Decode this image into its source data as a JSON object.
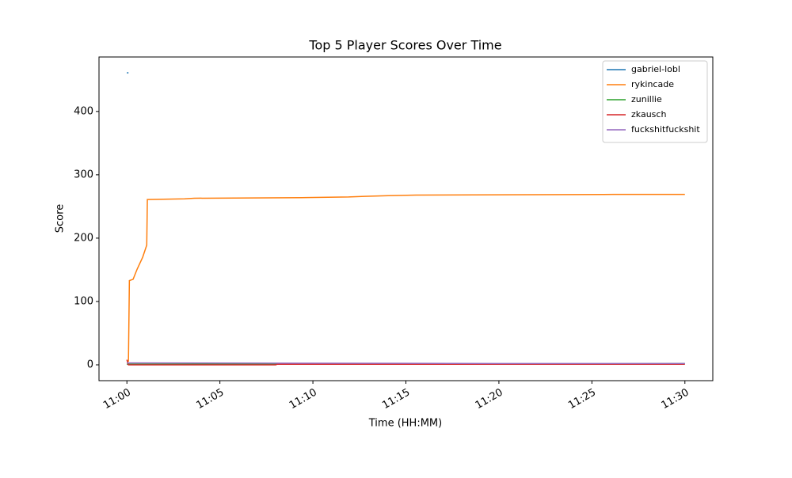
{
  "chart_data": {
    "type": "line",
    "title": "Top 5 Player Scores Over Time",
    "xlabel": "Time (HH:MM)",
    "ylabel": "Score",
    "xlim": [
      "10:58:30",
      "11:31:30"
    ],
    "xticks": [
      "11:00",
      "11:05",
      "11:10",
      "11:15",
      "11:20",
      "11:25",
      "11:30"
    ],
    "ylim": [
      -25,
      486
    ],
    "yticks": [
      0,
      100,
      200,
      300,
      400
    ],
    "legend": "upper right",
    "series": [
      {
        "name": "gabriel-lobl",
        "color": "#1f77b4",
        "x": [
          "11:00:00",
          "11:00:05"
        ],
        "values": [
          461,
          461
        ]
      },
      {
        "name": "rykincade",
        "color": "#ff7f0e",
        "x": [
          "11:00:05",
          "11:00:08",
          "11:00:20",
          "11:00:33",
          "11:00:51",
          "11:01:04",
          "11:01:06",
          "11:03:06",
          "11:03:37",
          "11:09:42",
          "11:11:55",
          "11:12:46",
          "11:14:03",
          "11:15:32",
          "11:26:10",
          "11:30:00"
        ],
        "values": [
          5,
          133,
          135,
          151,
          170,
          189,
          261,
          262,
          263,
          264,
          265,
          266,
          267,
          268,
          269,
          269
        ]
      },
      {
        "name": "zunillie",
        "color": "#2ca02c",
        "x": [
          "11:00:00",
          "11:10:00",
          "11:20:00",
          "11:30:00"
        ],
        "values": [
          1,
          1,
          1,
          2
        ]
      },
      {
        "name": "zkausch",
        "color": "#d62728",
        "x": [
          "11:00:00",
          "11:00:05",
          "11:08:00",
          "11:08:05",
          "11:30:00"
        ],
        "values": [
          8,
          0,
          0,
          1,
          1
        ]
      },
      {
        "name": "fuckshitfuckshit",
        "color": "#9467bd",
        "x": [
          "11:00:00",
          "11:10:00",
          "11:20:00",
          "11:30:00"
        ],
        "values": [
          3,
          2.5,
          2,
          2
        ]
      }
    ]
  }
}
